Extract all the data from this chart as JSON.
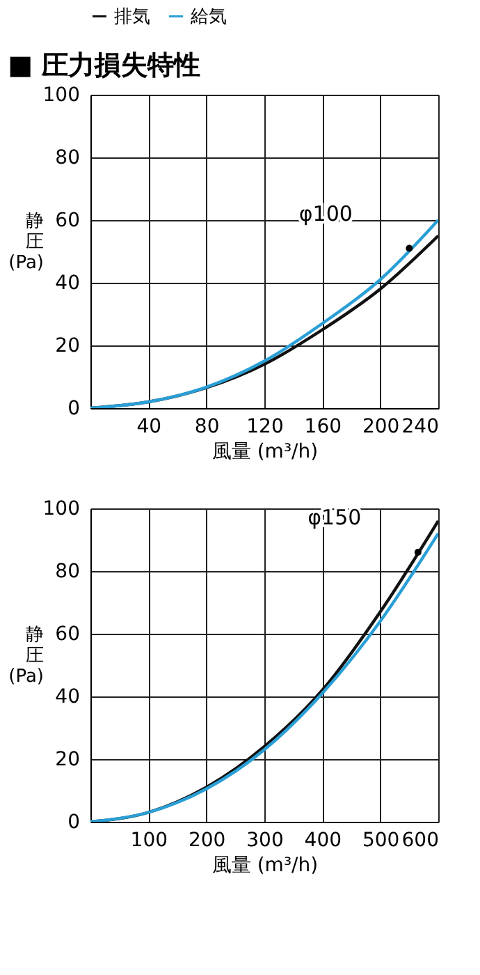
{
  "chart_data": [
    {
      "type": "line",
      "title": "■ 圧力損失特性",
      "xlabel": "風量 (m³/h)",
      "ylabel": "静圧(Pa)",
      "x": [
        0,
        40,
        80,
        120,
        160,
        200,
        240
      ],
      "series": [
        {
          "name": "排気",
          "color": "#111111",
          "values": [
            0,
            2,
            6.5,
            14,
            25,
            38,
            55
          ]
        },
        {
          "name": "給気",
          "color": "#2a9fd6",
          "values": [
            0,
            2,
            6.7,
            15,
            27,
            41,
            60
          ]
        }
      ],
      "xlim": [
        0,
        240
      ],
      "xticks": [
        {
          "value": 0,
          "label": null
        },
        40,
        80,
        120,
        160,
        200,
        240
      ],
      "ylim": [
        0,
        100
      ],
      "yticks": [
        0,
        20,
        40,
        60,
        80,
        100
      ],
      "grid": true,
      "legend": "top",
      "marker": "none",
      "line_style": "solid",
      "annotations": [
        {
          "text": "φ100",
          "x": 220,
          "y": 51
        }
      ]
    },
    {
      "type": "line",
      "xlabel": "風量 (m³/h)",
      "ylabel": "静圧(Pa)",
      "x": [
        0,
        100,
        200,
        300,
        400,
        500,
        600
      ],
      "series": [
        {
          "name": "排気",
          "color": "#111111",
          "values": [
            0,
            3,
            11,
            24,
            42,
            67,
            96
          ]
        },
        {
          "name": "給気",
          "color": "#2a9fd6",
          "values": [
            0,
            3,
            10.5,
            23,
            41,
            64,
            92
          ]
        }
      ],
      "xlim": [
        0,
        600
      ],
      "xticks": [
        {
          "value": 0,
          "label": null
        },
        100,
        200,
        300,
        400,
        500,
        600
      ],
      "ylim": [
        0,
        100
      ],
      "yticks": [
        0,
        20,
        40,
        60,
        80,
        100
      ],
      "grid": true,
      "legend": false,
      "marker": "none",
      "line_style": "solid",
      "annotations": [
        {
          "text": "φ150",
          "x": 565,
          "y": 86
        }
      ]
    }
  ]
}
